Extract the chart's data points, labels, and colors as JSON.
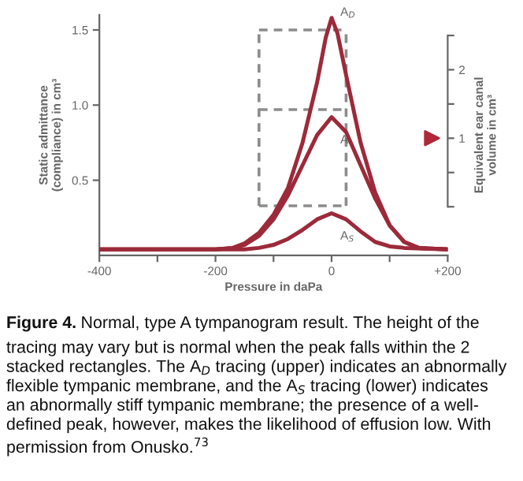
{
  "chart_data": {
    "type": "line",
    "xlabel": "Pressure in daPa",
    "ylabel": "Static admittance\n(compliance) in cm³",
    "y2label": "Equivalent ear canal\nvolume in cm³",
    "xlim": [
      -400,
      200
    ],
    "xticks": [
      {
        "value": -400,
        "label": "-400"
      },
      {
        "value": -300,
        "label": null
      },
      {
        "value": -200,
        "label": "-200"
      },
      {
        "value": -100,
        "label": null
      },
      0,
      {
        "value": 100,
        "label": null
      },
      {
        "value": 200,
        "label": "+200"
      }
    ],
    "ylim": [
      0,
      1.6
    ],
    "yticks": [
      0.5,
      {
        "value": 1.0,
        "label": "1.0"
      },
      1.5
    ],
    "y2lim": [
      -0.71,
      2.8
    ],
    "y2ticks": [
      {
        "value": 0,
        "label": null
      },
      {
        "value": 0.5,
        "label": null
      },
      1,
      {
        "value": 1.5,
        "label": null
      },
      2,
      {
        "value": 2.5,
        "label": null
      }
    ],
    "grid": false,
    "legend": false,
    "marker": "none",
    "series": [
      {
        "name": "A$_{D}$",
        "color": "#9c2a3a",
        "line_style": "solid",
        "x": [
          -400,
          -200,
          -170,
          -150,
          -125,
          -100,
          -75,
          -50,
          -25,
          -10,
          0,
          10,
          25,
          50,
          75,
          100,
          125,
          150,
          200
        ],
        "values": [
          0.04,
          0.04,
          0.05,
          0.08,
          0.15,
          0.27,
          0.45,
          0.75,
          1.15,
          1.45,
          1.58,
          1.48,
          1.2,
          0.75,
          0.42,
          0.2,
          0.09,
          0.05,
          0.04
        ]
      },
      {
        "name": "A",
        "color": "#9c2a3a",
        "line_style": "solid",
        "x": [
          -400,
          -200,
          -170,
          -150,
          -125,
          -100,
          -75,
          -50,
          -25,
          0,
          25,
          50,
          75,
          100,
          125,
          150,
          200
        ],
        "values": [
          0.04,
          0.04,
          0.05,
          0.07,
          0.13,
          0.24,
          0.4,
          0.6,
          0.8,
          0.92,
          0.82,
          0.6,
          0.38,
          0.2,
          0.09,
          0.05,
          0.04
        ]
      },
      {
        "name": "A$_{S}$",
        "color": "#9c2a3a",
        "line_style": "solid",
        "x": [
          -400,
          -150,
          -125,
          -100,
          -75,
          -50,
          -25,
          0,
          25,
          50,
          75,
          100,
          125,
          200
        ],
        "values": [
          0.04,
          0.04,
          0.05,
          0.07,
          0.11,
          0.17,
          0.24,
          0.28,
          0.24,
          0.16,
          0.09,
          0.06,
          0.05,
          0.04
        ]
      },
      {
        "color": "#8c8c8c",
        "line_style": "dashed",
        "x": [
          -125,
          25
        ],
        "values": [
          1.5,
          1.5
        ]
      },
      {
        "color": "#8c8c8c",
        "line_style": "dashed",
        "x": [
          -125,
          25
        ],
        "values": [
          0.97,
          0.97
        ]
      },
      {
        "color": "#8c8c8c",
        "line_style": "dashed",
        "x": [
          -125,
          25
        ],
        "values": [
          0.33,
          0.33
        ]
      },
      {
        "color": "#8c8c8c",
        "line_style": "dashed",
        "x": [
          -125,
          -125
        ],
        "values": [
          0.33,
          1.5
        ]
      },
      {
        "color": "#8c8c8c",
        "line_style": "dashed",
        "x": [
          25,
          25
        ],
        "values": [
          0.33,
          1.5
        ]
      }
    ],
    "annotations": [
      "Figure 4.",
      "Normal, type A tympanogram result. The height of the\ntracing may vary but is normal when the peak falls within the 2\nstacked rectangles. The A$_{D}$ tracing (upper) indicates an abnormally\nflexible tympanic membrane, and the A$_{S}$ tracing (lower) indicates\nan abnormally stiff tympanic membrane; the presence of a well-\ndefined peak, however, makes the likelihood of effusion low. With\npermission from Onusko.$^{73}$"
    ]
  }
}
